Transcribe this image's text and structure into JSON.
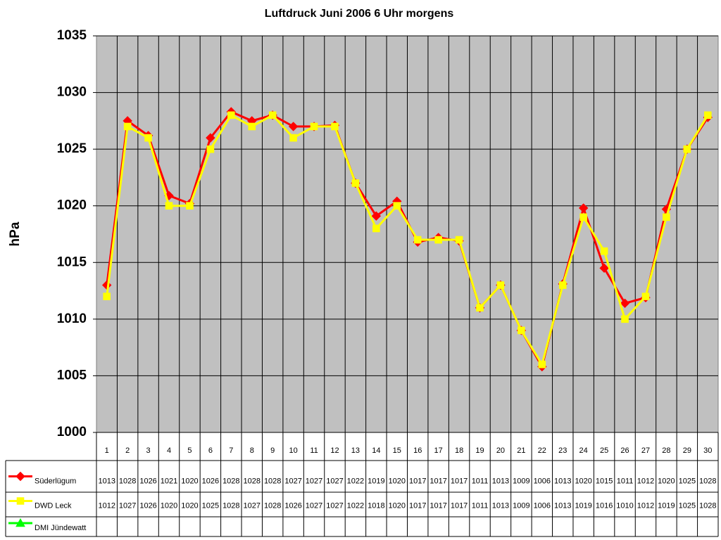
{
  "chart_data": {
    "type": "line",
    "title": "Luftdruck Juni 2006 6 Uhr morgens",
    "y_label": "hPa",
    "categories": [
      1,
      2,
      3,
      4,
      5,
      6,
      7,
      8,
      9,
      10,
      11,
      12,
      13,
      14,
      15,
      16,
      17,
      18,
      19,
      20,
      21,
      22,
      23,
      24,
      25,
      26,
      27,
      28,
      29,
      30
    ],
    "series": [
      {
        "name": "Süderlügum",
        "color": "#ff0000",
        "marker": "diamond",
        "values": [
          1013,
          1027.5,
          1026.2,
          1020.9,
          1020.2,
          1026,
          1028.3,
          1027.5,
          1028,
          1027,
          1027,
          1027.1,
          1022,
          1019.1,
          1020.4,
          1016.8,
          1017.2,
          1016.9,
          1011,
          1013,
          1009,
          1005.8,
          1013.1,
          1019.8,
          1014.5,
          1011.4,
          1011.9,
          1019.7,
          1025,
          1027.8
        ],
        "value_labels": [
          "1013",
          "1028",
          "1026",
          "1021",
          "1020",
          "1026",
          "1028",
          "1028",
          "1028",
          "1027",
          "1027",
          "1027",
          "1022",
          "1019",
          "1020",
          "1017",
          "1017",
          "1017",
          "1011",
          "1013",
          "1009",
          "1006",
          "1013",
          "1020",
          "1015",
          "1011",
          "1012",
          "1020",
          "1025",
          "1028"
        ]
      },
      {
        "name": "DWD Leck",
        "color": "#ffff00",
        "marker": "square",
        "values": [
          1012,
          1027,
          1026,
          1020,
          1020,
          1025,
          1028,
          1027,
          1028,
          1026,
          1027,
          1027,
          1022,
          1018,
          1020,
          1017,
          1017,
          1017,
          1011,
          1013,
          1009,
          1006,
          1013,
          1019,
          1016,
          1010,
          1012,
          1019,
          1025,
          1028
        ]
      },
      {
        "name": "DMI Jündewatt",
        "color": "#00ff00",
        "marker": "triangle",
        "values": [
          null,
          null,
          null,
          null,
          null,
          null,
          null,
          null,
          null,
          null,
          null,
          null,
          null,
          null,
          null,
          null,
          null,
          null,
          null,
          null,
          null,
          null,
          null,
          null,
          null,
          null,
          null,
          null,
          null,
          null
        ]
      }
    ],
    "ylim": [
      1000,
      1035
    ],
    "yticks": [
      1000,
      1005,
      1010,
      1015,
      1020,
      1025,
      1030,
      1035
    ],
    "grid": true,
    "plot_background": "#c0c0c0"
  }
}
